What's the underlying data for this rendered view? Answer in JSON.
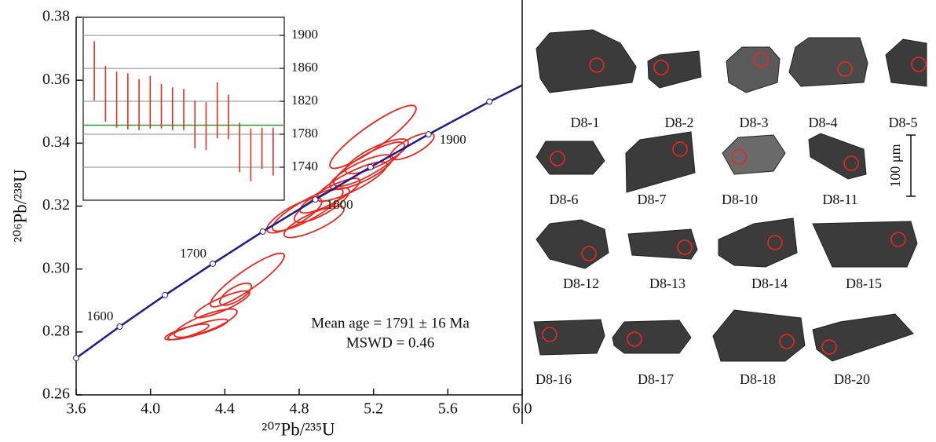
{
  "chart_data": [
    {
      "type": "concordia",
      "xlabel": "²⁰⁷Pb/²³⁵U",
      "ylabel": "²⁰⁶Pb/²³⁸U",
      "xlim": [
        3.6,
        6.0
      ],
      "ylim": [
        0.26,
        0.38
      ],
      "xticks": [
        3.6,
        {
          "value": 4,
          "label": "4.0"
        },
        4.4,
        4.8,
        5.2,
        5.6,
        {
          "value": 6,
          "label": "6.0"
        }
      ],
      "yticks": [
        0.26,
        0.28,
        {
          "value": 0.3,
          "label": "0.30"
        },
        0.32,
        0.34,
        0.36,
        0.38
      ],
      "concordia": {
        "color": "#1c1c8c",
        "x": [
          3.6,
          3.834,
          4.078,
          4.335,
          4.604,
          4.887,
          5.184,
          5.496,
          5.824,
          6.0
        ],
        "y": [
          0.2717,
          0.2817,
          0.2917,
          0.3017,
          0.3119,
          0.3221,
          0.3324,
          0.3428,
          0.3532,
          0.3584
        ]
      },
      "age_markers": {
        "x": [
          3.6,
          3.834,
          4.078,
          4.335,
          4.604,
          4.887,
          5.184,
          5.496,
          5.824
        ],
        "y": [
          0.2717,
          0.2817,
          0.2917,
          0.3017,
          0.3119,
          0.3221,
          0.3324,
          0.3428,
          0.3532
        ],
        "labels": [
          null,
          "1600",
          null,
          "1700",
          null,
          "1800",
          null,
          "1900",
          null
        ]
      },
      "ellipses": {
        "color": "#e8281e",
        "x": [
          4.255,
          4.297,
          4.386,
          4.458,
          4.521,
          4.774,
          4.846,
          4.88,
          4.922,
          4.965,
          5.083,
          5.134,
          5.176,
          5.218,
          5.197,
          5.408,
          4.196
        ],
        "y": [
          0.2808,
          0.2828,
          0.2888,
          0.292,
          0.2965,
          0.317,
          0.3188,
          0.315,
          0.3203,
          0.3233,
          0.3278,
          0.3308,
          0.3333,
          0.3358,
          0.342,
          0.339,
          0.28
        ],
        "x_err": [
          0.161,
          0.169,
          0.148,
          0.085,
          0.199,
          0.148,
          0.19,
          0.161,
          0.148,
          0.161,
          0.19,
          0.169,
          0.19,
          0.169,
          0.232,
          0.118,
          0.118
        ],
        "y_err": [
          0.00325,
          0.0045,
          0.00425,
          0.0035,
          0.0085,
          0.0055,
          0.00675,
          0.005,
          0.0055,
          0.0055,
          0.00625,
          0.0055,
          0.007,
          0.0055,
          0.01,
          0.00425,
          0.0025
        ],
        "rho": [
          0.85,
          0.8,
          0.85,
          0.7,
          0.9,
          0.8,
          0.85,
          0.8,
          0.8,
          0.85,
          0.85,
          0.8,
          0.85,
          0.8,
          0.9,
          0.75,
          0.8
        ]
      },
      "annotations": [
        "Mean age = 1791 ± 16 Ma",
        "MSWD = 0.46"
      ]
    },
    {
      "type": "error_bar",
      "ylim": [
        1700,
        1922
      ],
      "yticks": [
        1740,
        1780,
        1820,
        1860,
        1900
      ],
      "grid": true,
      "color": "#e0301e",
      "mean": 1791,
      "mean_color": "#2ca02c",
      "values": [
        1857,
        1829,
        1822,
        1820,
        1816,
        1819,
        1814,
        1811,
        1810,
        1792,
        1790,
        1809,
        1801,
        1764,
        1755,
        1763,
        1759
      ],
      "errors": [
        36,
        34,
        34,
        34,
        31,
        32,
        27,
        26,
        25,
        29,
        29,
        34,
        27,
        30,
        32,
        25,
        29
      ]
    }
  ],
  "grain_images": {
    "labels": [
      "D8-1",
      "D8-2",
      "D8-3",
      "D8-4",
      "D8-5",
      "D8-6",
      "D8-7",
      "D8-10",
      "D8-11",
      "D8-12",
      "D8-13",
      "D8-14",
      "D8-15",
      "D8-16",
      "D8-17",
      "D8-18",
      "D8-20"
    ],
    "scale_bar": "100 μm"
  }
}
